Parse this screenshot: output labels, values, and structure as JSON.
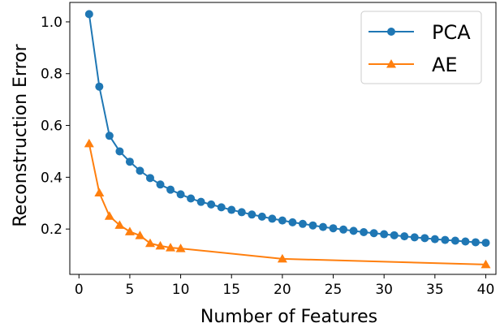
{
  "chart_data": {
    "type": "line",
    "title": "",
    "xlabel": "Number of Features",
    "ylabel": "Reconstruction Error",
    "xlim": [
      -0.9,
      41.0
    ],
    "ylim": [
      0.025,
      1.075
    ],
    "xticks": [
      0,
      5,
      10,
      15,
      20,
      25,
      30,
      35,
      40
    ],
    "yticks": [
      0.2,
      0.4,
      0.6,
      0.8,
      1.0
    ],
    "xtick_labels": [
      "0",
      "5",
      "10",
      "15",
      "20",
      "25",
      "30",
      "35",
      "40"
    ],
    "ytick_labels": [
      "0.2",
      "0.4",
      "0.6",
      "0.8",
      "1.0"
    ],
    "grid": false,
    "legend_position": "top-right",
    "series": [
      {
        "name": "PCA",
        "color": "#1f77b4",
        "marker": "circle",
        "x": [
          1,
          2,
          3,
          4,
          5,
          6,
          7,
          8,
          9,
          10,
          11,
          12,
          13,
          14,
          15,
          16,
          17,
          18,
          19,
          20,
          21,
          22,
          23,
          24,
          25,
          26,
          27,
          28,
          29,
          30,
          31,
          32,
          33,
          34,
          35,
          36,
          37,
          38,
          39,
          40
        ],
        "y": [
          1.03,
          0.75,
          0.56,
          0.5,
          0.46,
          0.425,
          0.397,
          0.372,
          0.352,
          0.334,
          0.318,
          0.305,
          0.295,
          0.284,
          0.274,
          0.265,
          0.256,
          0.248,
          0.24,
          0.233,
          0.226,
          0.22,
          0.214,
          0.208,
          0.203,
          0.198,
          0.193,
          0.188,
          0.184,
          0.18,
          0.176,
          0.172,
          0.168,
          0.165,
          0.161,
          0.158,
          0.155,
          0.152,
          0.149,
          0.147
        ]
      },
      {
        "name": "AE",
        "color": "#ff7f0e",
        "marker": "triangle",
        "x": [
          1,
          2,
          3,
          4,
          5,
          6,
          7,
          8,
          9,
          10,
          20,
          40
        ],
        "y": [
          0.53,
          0.34,
          0.25,
          0.215,
          0.19,
          0.175,
          0.145,
          0.135,
          0.128,
          0.125,
          0.085,
          0.063
        ]
      }
    ]
  }
}
